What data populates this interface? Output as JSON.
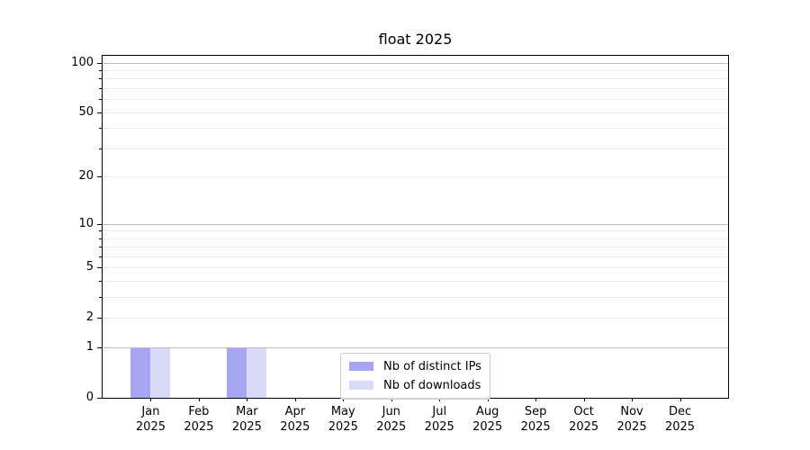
{
  "chart_data": {
    "type": "bar",
    "title": "float 2025",
    "x": {
      "categories": [
        "Jan",
        "Feb",
        "Mar",
        "Apr",
        "May",
        "Jun",
        "Jul",
        "Aug",
        "Sep",
        "Oct",
        "Nov",
        "Dec"
      ],
      "tick_year": "2025"
    },
    "series": [
      {
        "name": "Nb of distinct IPs",
        "color": "#a5a5f1",
        "values": [
          1,
          0,
          1,
          0,
          0,
          0,
          0,
          0,
          0,
          0,
          0,
          0
        ]
      },
      {
        "name": "Nb of downloads",
        "color": "#d9d9f8",
        "values": [
          1,
          0,
          1,
          0,
          0,
          0,
          0,
          0,
          0,
          0,
          0,
          0
        ]
      }
    ],
    "y_axis": {
      "scale": "log1p",
      "ylim": [
        0,
        110
      ],
      "ticks_labeled": [
        0,
        1,
        2,
        5,
        10,
        20,
        50,
        100
      ],
      "gridlines_major": [
        1,
        10,
        100
      ],
      "gridlines_minor": [
        2,
        3,
        4,
        5,
        6,
        7,
        8,
        9,
        20,
        30,
        40,
        50,
        60,
        70,
        80,
        90
      ]
    },
    "legend": {
      "position": "lower center"
    },
    "grid": true
  }
}
